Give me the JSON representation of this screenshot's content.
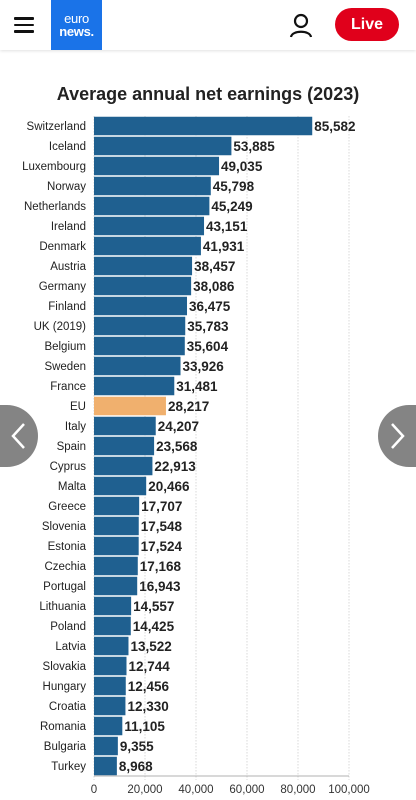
{
  "header": {
    "logo_line1": "euro",
    "logo_line2": "news.",
    "live_label": "Live"
  },
  "icons": {
    "menu": "hamburger-menu-icon",
    "user": "user-icon",
    "prev": "chevron-left-icon",
    "next": "chevron-right-icon"
  },
  "colors": {
    "bar": "#1f6090",
    "highlight": "#f0b06e",
    "live": "#e0001b",
    "logo": "#1a73e8"
  },
  "chart_data": {
    "type": "bar",
    "orientation": "horizontal",
    "title": "Average annual net earnings (2023)",
    "categories": [
      "Switzerland",
      "Iceland",
      "Luxembourg",
      "Norway",
      "Netherlands",
      "Ireland",
      "Denmark",
      "Austria",
      "Germany",
      "Finland",
      "UK (2019)",
      "Belgium",
      "Sweden",
      "France",
      "EU",
      "Italy",
      "Spain",
      "Cyprus",
      "Malta",
      "Greece",
      "Slovenia",
      "Estonia",
      "Czechia",
      "Portugal",
      "Lithuania",
      "Poland",
      "Latvia",
      "Slovakia",
      "Hungary",
      "Croatia",
      "Romania",
      "Bulgaria",
      "Turkey"
    ],
    "values": [
      85582,
      53885,
      49035,
      45798,
      45249,
      43151,
      41931,
      38457,
      38086,
      36475,
      35783,
      35604,
      33926,
      31481,
      28217,
      24207,
      23568,
      22913,
      20466,
      17707,
      17548,
      17524,
      17168,
      16943,
      14557,
      14425,
      13522,
      12744,
      12456,
      12330,
      11105,
      9355,
      8968
    ],
    "value_labels": [
      "85,582",
      "53,885",
      "49,035",
      "45,798",
      "45,249",
      "43,151",
      "41,931",
      "38,457",
      "38,086",
      "36,475",
      "35,783",
      "35,604",
      "33,926",
      "31,481",
      "28,217",
      "24,207",
      "23,568",
      "22,913",
      "20,466",
      "17,707",
      "17,548",
      "17,524",
      "17,168",
      "16,943",
      "14,557",
      "14,425",
      "13,522",
      "12,744",
      "12,456",
      "12,330",
      "11,105",
      "9,355",
      "8,968"
    ],
    "highlight_category": "EU",
    "xlim": [
      0,
      100000
    ],
    "x_ticks": [
      0,
      20000,
      40000,
      60000,
      80000,
      100000
    ],
    "x_tick_labels": [
      "0",
      "20,000",
      "40,000",
      "60,000",
      "80,000",
      "100,000"
    ],
    "grid": true,
    "legend": "none"
  }
}
